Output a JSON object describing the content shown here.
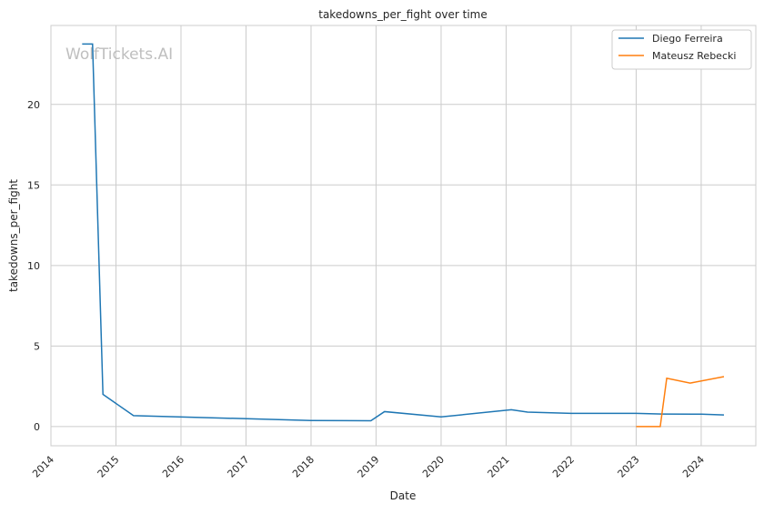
{
  "chart_data": {
    "type": "line",
    "title": "takedowns_per_fight over time",
    "xlabel": "Date",
    "ylabel": "takedowns_per_fight",
    "watermark": "WolfTickets.AI",
    "xlim": [
      2014.0,
      2024.84
    ],
    "ylim": [
      -1.19,
      24.9
    ],
    "xticks": [
      2014,
      2015,
      2016,
      2017,
      2018,
      2019,
      2020,
      2021,
      2022,
      2023,
      2024
    ],
    "yticks": [
      0,
      5,
      10,
      15,
      20
    ],
    "grid": true,
    "legend_position": "top-right",
    "series": [
      {
        "name": "Diego Ferreira",
        "color": "#1f77b4",
        "x": [
          2014.48,
          2014.64,
          2014.8,
          2015.27,
          2018.0,
          2018.92,
          2019.13,
          2020.0,
          2021.08,
          2021.33,
          2022.0,
          2023.0,
          2023.4,
          2024.0,
          2024.35
        ],
        "y": [
          23.75,
          23.75,
          2.0,
          0.68,
          0.38,
          0.36,
          0.93,
          0.6,
          1.05,
          0.9,
          0.82,
          0.82,
          0.78,
          0.77,
          0.72
        ]
      },
      {
        "name": "Mateusz Rebecki",
        "color": "#ff7f0e",
        "x": [
          2023.0,
          2023.37,
          2023.47,
          2023.83,
          2024.35
        ],
        "y": [
          0,
          0,
          3.0,
          2.7,
          3.1
        ]
      }
    ]
  }
}
